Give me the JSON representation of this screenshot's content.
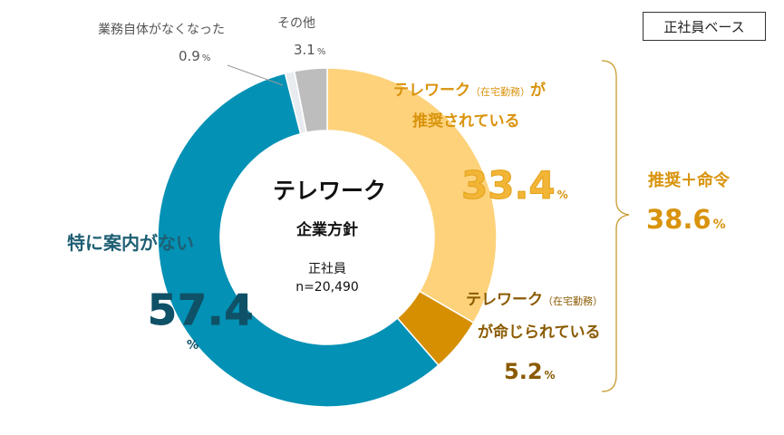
{
  "badge": "正社員ベース",
  "center": {
    "title": "テレワーク",
    "subtitle": "企業方針",
    "sample_label": "正社員",
    "sample_n": "n=20,490"
  },
  "labels": {
    "recommended_line1": "テレワーク",
    "recommended_paren": "（在宅勤務）",
    "recommended_line1_end": "が",
    "recommended_line2": "推奨されている",
    "recommended_value": "33.4",
    "ordered_line1": "テレワーク",
    "ordered_paren": "（在宅勤務）",
    "ordered_line2": "が命じられている",
    "ordered_value": "5.2",
    "no_guidance": "特に案内がない",
    "no_guidance_value": "57.4",
    "business_gone": "業務自体がなくなった",
    "business_gone_value": "0.9",
    "other": "その他",
    "other_value": "3.1",
    "unit": "%",
    "combined_label": "推奨＋命令",
    "combined_value": "38.6"
  },
  "colors": {
    "recommended": "#fdd27b",
    "ordered": "#d68f00",
    "no_guidance": "#0391b5",
    "business_gone": "#e8ecf0",
    "other": "#bdbdbd",
    "gold_text": "#d9930c",
    "brown_text": "#8a5a00",
    "teal_text": "#1e5f73",
    "gray_text": "#555555",
    "bracket": "#b8860b"
  },
  "chart_data": {
    "type": "pie",
    "title": "テレワーク 企業方針",
    "subtitle": "正社員 n=20,490",
    "unit": "%",
    "slices": [
      {
        "name": "テレワーク（在宅勤務）が推奨されている",
        "value": 33.4
      },
      {
        "name": "テレワーク（在宅勤務）が命じられている",
        "value": 5.2
      },
      {
        "name": "特に案内がない",
        "value": 57.4
      },
      {
        "name": "業務自体がなくなった",
        "value": 0.9
      },
      {
        "name": "その他",
        "value": 3.1
      }
    ],
    "combined": {
      "name": "推奨＋命令",
      "value": 38.6
    }
  }
}
